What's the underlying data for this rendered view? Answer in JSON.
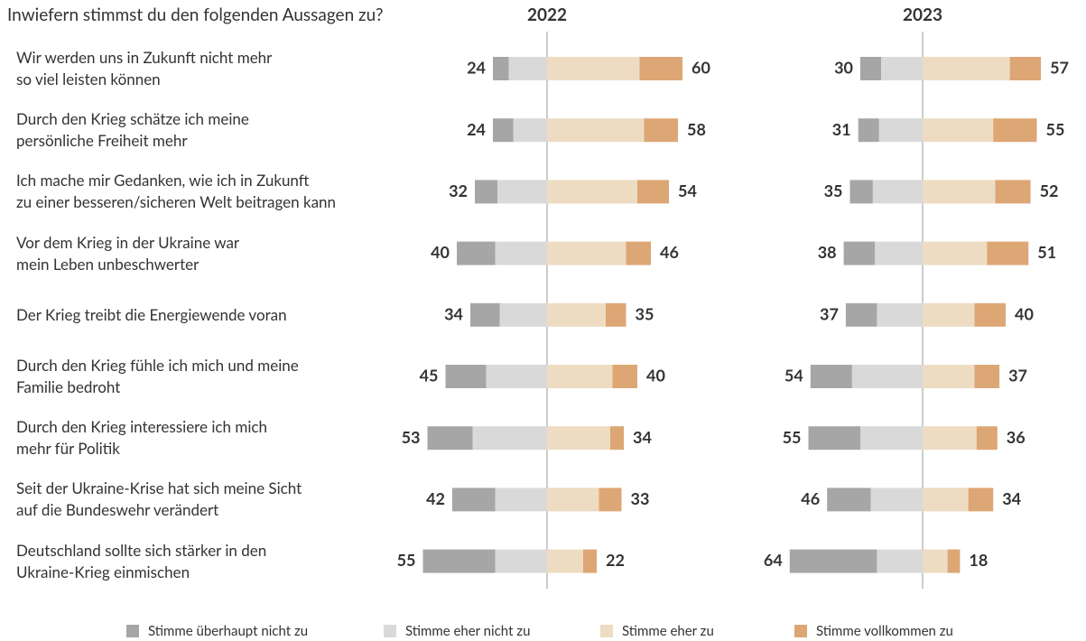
{
  "chart_data": [
    {
      "type": "bar",
      "question": "Inwiefern stimmst du den folgenden Aussagen zu?",
      "title": "2022",
      "categories": [
        "Wir werden uns in Zukunft nicht mehr\nso viel leisten können",
        "Durch den Krieg schätze ich meine\npersönliche Freiheit mehr",
        "Ich mache mir Gedanken, wie ich in Zukunft\nzu einer besseren/sicheren Welt beitragen kann",
        "Vor dem Krieg in der Ukraine war\nmein Leben unbeschwerter",
        "Der Krieg treibt die Energiewende voran",
        "Durch den Krieg fühle ich mich und meine\nFamilie bedroht",
        "Durch den Krieg interessiere ich mich\nmehr für Politik",
        "Seit der Ukraine-Krise hat sich meine Sicht\nauf die Bundeswehr verändert",
        "Deutschland sollte sich stärker in den\nUkraine-Krieg einmischen"
      ],
      "series": [
        {
          "name": "Stimme überhaupt nicht zu",
          "color": "#a6a6a6",
          "values": [
            7,
            9,
            10,
            17,
            13,
            18,
            20,
            19,
            32
          ]
        },
        {
          "name": "Stimme eher nicht zu",
          "color": "#d9d9d9",
          "values": [
            17,
            15,
            22,
            23,
            21,
            27,
            33,
            23,
            23
          ]
        },
        {
          "name": "Stimme eher zu",
          "color": "#eddcc2",
          "values": [
            41,
            43,
            40,
            35,
            26,
            29,
            28,
            23,
            16
          ]
        },
        {
          "name": "Stimme vollkommen zu",
          "color": "#dda675",
          "values": [
            19,
            15,
            14,
            11,
            9,
            11,
            6,
            10,
            6
          ]
        }
      ],
      "disagree_totals": [
        24,
        24,
        32,
        40,
        34,
        45,
        53,
        42,
        55
      ],
      "agree_totals": [
        60,
        58,
        54,
        46,
        35,
        40,
        34,
        33,
        22
      ]
    },
    {
      "type": "bar",
      "title": "2023",
      "series": [
        {
          "color": "#a6a6a6",
          "values": [
            10,
            10,
            11,
            15,
            15,
            20,
            25,
            21,
            42
          ]
        },
        {
          "color": "#d9d9d9",
          "values": [
            20,
            21,
            24,
            23,
            22,
            34,
            30,
            25,
            22
          ]
        },
        {
          "color": "#eddcc2",
          "values": [
            42,
            34,
            35,
            31,
            25,
            25,
            26,
            22,
            12
          ]
        },
        {
          "color": "#dda675",
          "values": [
            15,
            21,
            17,
            20,
            15,
            12,
            10,
            12,
            6
          ]
        }
      ],
      "disagree_totals": [
        30,
        31,
        35,
        38,
        37,
        54,
        55,
        46,
        64
      ],
      "agree_totals": [
        57,
        55,
        52,
        51,
        40,
        37,
        36,
        34,
        18
      ]
    }
  ]
}
